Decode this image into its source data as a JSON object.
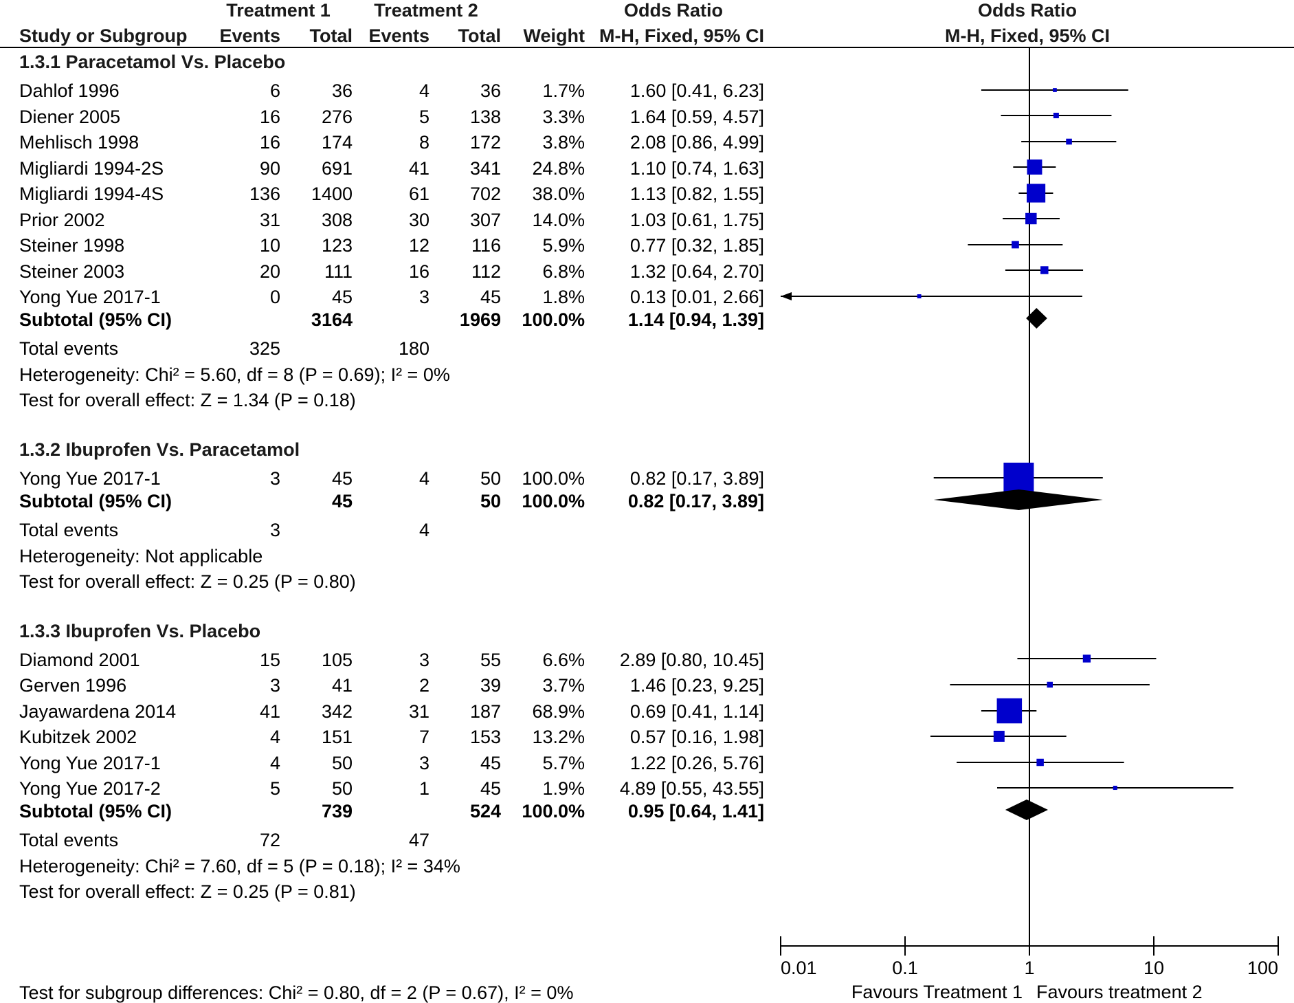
{
  "header": {
    "group1": "Treatment 1",
    "group2": "Treatment 2",
    "or_title": "Odds Ratio",
    "plot_title": "Odds Ratio",
    "col_study": "Study or Subgroup",
    "col_events1": "Events",
    "col_total1": "Total",
    "col_events2": "Events",
    "col_total2": "Total",
    "col_weight": "Weight",
    "col_ci": "M-H, Fixed, 95% CI",
    "plot_sub": "M-H, Fixed, 95% CI"
  },
  "groups": [
    {
      "title": "1.3.1 Paracetamol Vs. Placebo",
      "studies": [
        {
          "name": "Dahlof 1996",
          "e1": "6",
          "t1": "36",
          "e2": "4",
          "t2": "36",
          "w": "1.7%",
          "ci": "1.60 [0.41, 6.23]"
        },
        {
          "name": "Diener 2005",
          "e1": "16",
          "t1": "276",
          "e2": "5",
          "t2": "138",
          "w": "3.3%",
          "ci": "1.64 [0.59, 4.57]"
        },
        {
          "name": "Mehlisch 1998",
          "e1": "16",
          "t1": "174",
          "e2": "8",
          "t2": "172",
          "w": "3.8%",
          "ci": "2.08 [0.86, 4.99]"
        },
        {
          "name": "Migliardi 1994-2S",
          "e1": "90",
          "t1": "691",
          "e2": "41",
          "t2": "341",
          "w": "24.8%",
          "ci": "1.10 [0.74, 1.63]"
        },
        {
          "name": "Migliardi 1994-4S",
          "e1": "136",
          "t1": "1400",
          "e2": "61",
          "t2": "702",
          "w": "38.0%",
          "ci": "1.13 [0.82, 1.55]"
        },
        {
          "name": "Prior 2002",
          "e1": "31",
          "t1": "308",
          "e2": "30",
          "t2": "307",
          "w": "14.0%",
          "ci": "1.03 [0.61, 1.75]"
        },
        {
          "name": "Steiner 1998",
          "e1": "10",
          "t1": "123",
          "e2": "12",
          "t2": "116",
          "w": "5.9%",
          "ci": "0.77 [0.32, 1.85]"
        },
        {
          "name": "Steiner 2003",
          "e1": "20",
          "t1": "111",
          "e2": "16",
          "t2": "112",
          "w": "6.8%",
          "ci": "1.32 [0.64, 2.70]"
        },
        {
          "name": "Yong Yue 2017-1",
          "e1": "0",
          "t1": "45",
          "e2": "3",
          "t2": "45",
          "w": "1.8%",
          "ci": "0.13 [0.01, 2.66]"
        }
      ],
      "subtotal": {
        "label": "Subtotal (95% CI)",
        "t1": "3164",
        "t2": "1969",
        "w": "100.0%",
        "ci": "1.14 [0.94, 1.39]"
      },
      "total_events": {
        "label": "Total events",
        "e1": "325",
        "e2": "180"
      },
      "heterogeneity": "Heterogeneity: Chi² = 5.60, df = 8 (P = 0.69); I² = 0%",
      "overall": "Test for overall effect: Z = 1.34 (P = 0.18)"
    },
    {
      "title": "1.3.2 Ibuprofen Vs. Paracetamol",
      "studies": [
        {
          "name": "Yong Yue 2017-1",
          "e1": "3",
          "t1": "45",
          "e2": "4",
          "t2": "50",
          "w": "100.0%",
          "ci": "0.82 [0.17, 3.89]"
        }
      ],
      "subtotal": {
        "label": "Subtotal (95% CI)",
        "t1": "45",
        "t2": "50",
        "w": "100.0%",
        "ci": "0.82 [0.17, 3.89]"
      },
      "total_events": {
        "label": "Total events",
        "e1": "3",
        "e2": "4"
      },
      "heterogeneity": "Heterogeneity: Not applicable",
      "overall": "Test for overall effect: Z = 0.25 (P = 0.80)"
    },
    {
      "title": "1.3.3 Ibuprofen Vs. Placebo",
      "studies": [
        {
          "name": "Diamond 2001",
          "e1": "15",
          "t1": "105",
          "e2": "3",
          "t2": "55",
          "w": "6.6%",
          "ci": "2.89 [0.80, 10.45]"
        },
        {
          "name": "Gerven 1996",
          "e1": "3",
          "t1": "41",
          "e2": "2",
          "t2": "39",
          "w": "3.7%",
          "ci": "1.46 [0.23, 9.25]"
        },
        {
          "name": "Jayawardena 2014",
          "e1": "41",
          "t1": "342",
          "e2": "31",
          "t2": "187",
          "w": "68.9%",
          "ci": "0.69 [0.41, 1.14]"
        },
        {
          "name": "Kubitzek 2002",
          "e1": "4",
          "t1": "151",
          "e2": "7",
          "t2": "153",
          "w": "13.2%",
          "ci": "0.57 [0.16, 1.98]"
        },
        {
          "name": "Yong Yue 2017-1",
          "e1": "4",
          "t1": "50",
          "e2": "3",
          "t2": "45",
          "w": "5.7%",
          "ci": "1.22 [0.26, 5.76]"
        },
        {
          "name": "Yong Yue 2017-2",
          "e1": "5",
          "t1": "50",
          "e2": "1",
          "t2": "45",
          "w": "1.9%",
          "ci": "4.89 [0.55, 43.55]"
        }
      ],
      "subtotal": {
        "label": "Subtotal (95% CI)",
        "t1": "739",
        "t2": "524",
        "w": "100.0%",
        "ci": "0.95 [0.64, 1.41]"
      },
      "total_events": {
        "label": "Total events",
        "e1": "72",
        "e2": "47"
      },
      "heterogeneity": "Heterogeneity: Chi² = 7.60, df = 5 (P = 0.18); I² = 34%",
      "overall": "Test for overall effect: Z = 0.25 (P = 0.81)"
    }
  ],
  "subgroup_test": "Test for subgroup differences: Chi² = 0.80, df = 2 (P = 0.67), I² = 0%",
  "colors": {
    "marker": "#0000cc",
    "diamond": "#000000",
    "line": "#000000"
  },
  "chart_data": {
    "type": "forest",
    "scale": "log",
    "xlim": [
      0.01,
      100
    ],
    "ticks": [
      0.01,
      0.1,
      1,
      10,
      100
    ],
    "tick_labels": [
      "0.01",
      "0.1",
      "1",
      "10",
      "100"
    ],
    "favours_left": "Favours Treatment 1",
    "favours_right": "Favours treatment 2",
    "groups": [
      {
        "studies": [
          {
            "or": 1.6,
            "lo": 0.41,
            "hi": 6.23,
            "weight": 1.7
          },
          {
            "or": 1.64,
            "lo": 0.59,
            "hi": 4.57,
            "weight": 3.3
          },
          {
            "or": 2.08,
            "lo": 0.86,
            "hi": 4.99,
            "weight": 3.8
          },
          {
            "or": 1.1,
            "lo": 0.74,
            "hi": 1.63,
            "weight": 24.8
          },
          {
            "or": 1.13,
            "lo": 0.82,
            "hi": 1.55,
            "weight": 38.0
          },
          {
            "or": 1.03,
            "lo": 0.61,
            "hi": 1.75,
            "weight": 14.0
          },
          {
            "or": 0.77,
            "lo": 0.32,
            "hi": 1.85,
            "weight": 5.9
          },
          {
            "or": 1.32,
            "lo": 0.64,
            "hi": 2.7,
            "weight": 6.8
          },
          {
            "or": 0.13,
            "lo": 0.01,
            "hi": 2.66,
            "weight": 1.8
          }
        ],
        "subtotal": {
          "or": 1.14,
          "lo": 0.94,
          "hi": 1.39
        }
      },
      {
        "studies": [
          {
            "or": 0.82,
            "lo": 0.17,
            "hi": 3.89,
            "weight": 100.0
          }
        ],
        "subtotal": {
          "or": 0.82,
          "lo": 0.17,
          "hi": 3.89
        }
      },
      {
        "studies": [
          {
            "or": 2.89,
            "lo": 0.8,
            "hi": 10.45,
            "weight": 6.6
          },
          {
            "or": 1.46,
            "lo": 0.23,
            "hi": 9.25,
            "weight": 3.7
          },
          {
            "or": 0.69,
            "lo": 0.41,
            "hi": 1.14,
            "weight": 68.9
          },
          {
            "or": 0.57,
            "lo": 0.16,
            "hi": 1.98,
            "weight": 13.2
          },
          {
            "or": 1.22,
            "lo": 0.26,
            "hi": 5.76,
            "weight": 5.7
          },
          {
            "or": 4.89,
            "lo": 0.55,
            "hi": 43.55,
            "weight": 1.9
          }
        ],
        "subtotal": {
          "or": 0.95,
          "lo": 0.64,
          "hi": 1.41
        }
      }
    ]
  }
}
